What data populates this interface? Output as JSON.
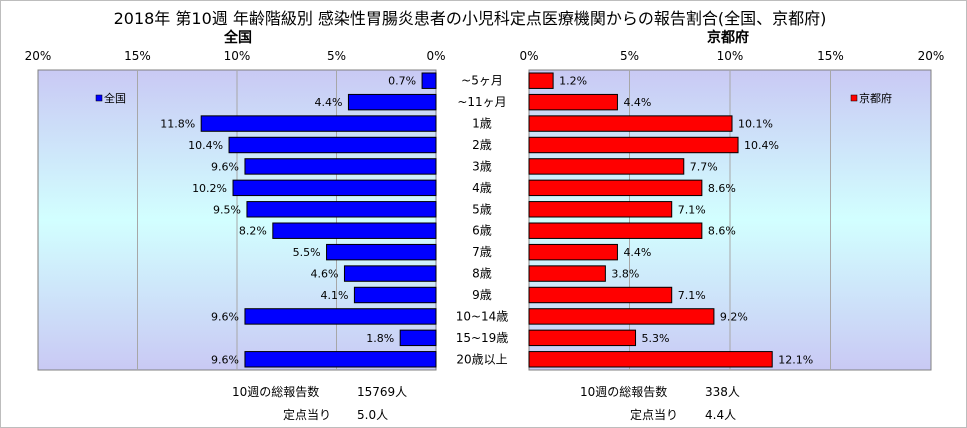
{
  "title": "2018年 第10週 年齢階級別 感染性胃腸炎患者の小児科定点医療機関からの報告割合(全国、京都府)",
  "colors": {
    "national": "#0000FF",
    "kyoto": "#FF0000",
    "bar_border": "#000000",
    "plot_bg_top": "#C9C9F4",
    "plot_bg_mid": "#D2FFFF",
    "plot_bg_bottom": "#C9C9F4",
    "grid": "#A7A7A7"
  },
  "chart_data": [
    {
      "type": "bar",
      "orientation": "horizontal",
      "direction": "right-to-left",
      "title": "全国",
      "categories": [
        "~5ヶ月",
        "~11ヶ月",
        "1歳",
        "2歳",
        "3歳",
        "4歳",
        "5歳",
        "6歳",
        "7歳",
        "8歳",
        "9歳",
        "10~14歳",
        "15~19歳",
        "20歳以上"
      ],
      "series": [
        {
          "name": "全国",
          "values": [
            0.7,
            4.4,
            11.8,
            10.4,
            9.6,
            10.2,
            9.5,
            8.2,
            5.5,
            4.6,
            4.1,
            9.6,
            1.8,
            9.6
          ],
          "labels": [
            "0.7%",
            "4.4%",
            "11.8%",
            "10.4%",
            "9.6%",
            "10.2%",
            "9.5%",
            "8.2%",
            "5.5%",
            "4.6%",
            "4.1%",
            "9.6%",
            "1.8%",
            "9.6%"
          ]
        }
      ],
      "xlim": [
        0,
        20
      ],
      "xticks": [
        "20%",
        "15%",
        "10%",
        "5%",
        "0%"
      ],
      "grid": true,
      "legend_position": "top-left"
    },
    {
      "type": "bar",
      "orientation": "horizontal",
      "direction": "left-to-right",
      "title": "京都府",
      "categories": [
        "~5ヶ月",
        "~11ヶ月",
        "1歳",
        "2歳",
        "3歳",
        "4歳",
        "5歳",
        "6歳",
        "7歳",
        "8歳",
        "9歳",
        "10~14歳",
        "15~19歳",
        "20歳以上"
      ],
      "series": [
        {
          "name": "京都府",
          "values": [
            1.2,
            4.4,
            10.1,
            10.4,
            7.7,
            8.6,
            7.1,
            8.6,
            4.4,
            3.8,
            7.1,
            9.2,
            5.3,
            12.1
          ],
          "labels": [
            "1.2%",
            "4.4%",
            "10.1%",
            "10.4%",
            "7.7%",
            "8.6%",
            "7.1%",
            "8.6%",
            "4.4%",
            "3.8%",
            "7.1%",
            "9.2%",
            "5.3%",
            "12.1%"
          ]
        }
      ],
      "xlim": [
        0,
        20
      ],
      "xticks": [
        "0%",
        "5%",
        "10%",
        "15%",
        "20%"
      ],
      "grid": true,
      "legend_position": "top-right"
    }
  ],
  "footer": {
    "national": {
      "total_label": "10週の総報告数",
      "total_value": "15769人",
      "per_label": "定点当り",
      "per_value": "5.0人"
    },
    "kyoto": {
      "total_label": "10週の総報告数",
      "total_value": "338人",
      "per_label": "定点当り",
      "per_value": "4.4人"
    }
  }
}
